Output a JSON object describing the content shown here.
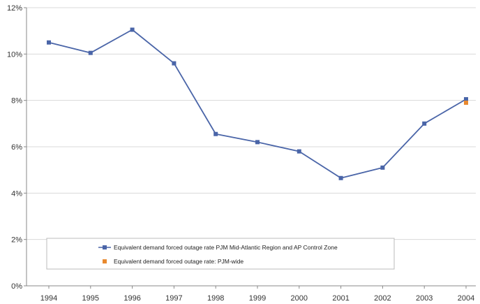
{
  "chart_data": {
    "type": "line",
    "title": "",
    "xlabel": "",
    "ylabel": "",
    "categories": [
      "1994",
      "1995",
      "1996",
      "1997",
      "1998",
      "1999",
      "2000",
      "2001",
      "2002",
      "2003",
      "2004"
    ],
    "ylim": [
      0,
      12
    ],
    "yticks": [
      "0%",
      "2%",
      "4%",
      "6%",
      "8%",
      "10%",
      "12%"
    ],
    "ytick_values": [
      0,
      2,
      4,
      6,
      8,
      10,
      12
    ],
    "grid": true,
    "legend_position": "bottom",
    "series": [
      {
        "name": "Equivalent demand forced outage rate PJM Mid-Atlantic Region and AP Control Zone",
        "color": "#4a65a8",
        "values": [
          10.5,
          10.05,
          11.05,
          9.6,
          6.55,
          6.2,
          5.8,
          4.65,
          5.1,
          7.0,
          8.05
        ]
      },
      {
        "name": "Equivalent demand forced outage rate: PJM-wide",
        "color": "#e8892f",
        "values": [
          null,
          null,
          null,
          null,
          null,
          null,
          null,
          null,
          null,
          null,
          7.9
        ]
      }
    ]
  }
}
